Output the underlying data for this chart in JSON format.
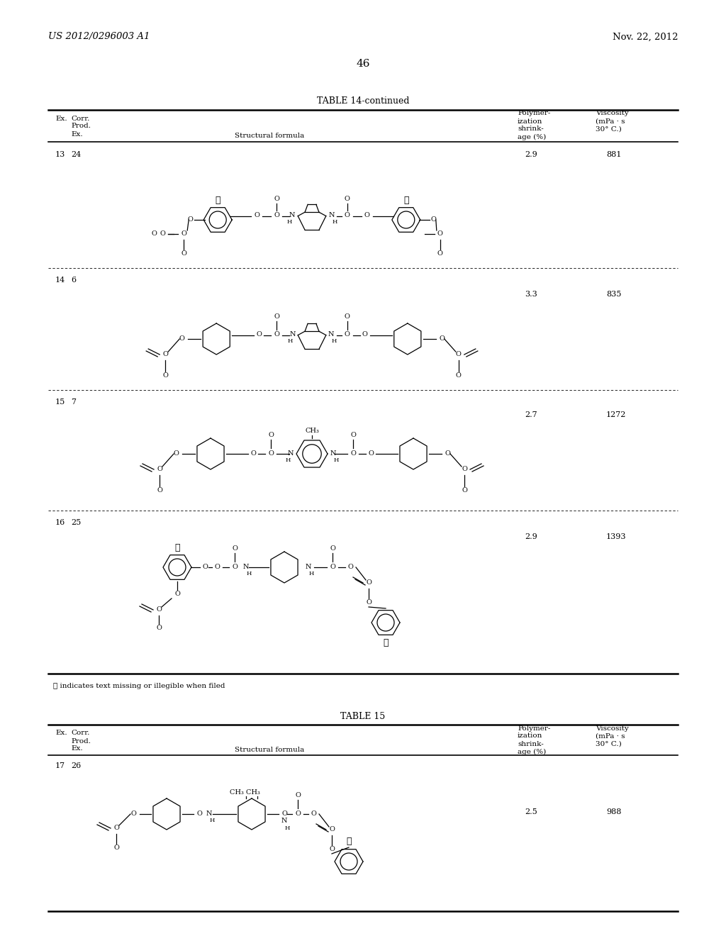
{
  "page_header_left": "US 2012/0296003 A1",
  "page_header_right": "Nov. 22, 2012",
  "page_number": "46",
  "table1_title": "TABLE 14-continued",
  "footnote": "Ⓕ indicates text missing or illegible when filed",
  "table2_title": "TABLE 15",
  "bg_color": "#ffffff",
  "text_color": "#000000",
  "table1_rows": [
    {
      "ex": "13",
      "corr": "24",
      "shrinkage": "2.9",
      "viscosity": "881"
    },
    {
      "ex": "14",
      "corr": "6",
      "shrinkage": "3.3",
      "viscosity": "835"
    },
    {
      "ex": "15",
      "corr": "7",
      "shrinkage": "2.7",
      "viscosity": "1272"
    },
    {
      "ex": "16",
      "corr": "25",
      "shrinkage": "2.9",
      "viscosity": "1393"
    }
  ],
  "table2_rows": [
    {
      "ex": "17",
      "corr": "26",
      "shrinkage": "2.5",
      "viscosity": "988"
    }
  ]
}
